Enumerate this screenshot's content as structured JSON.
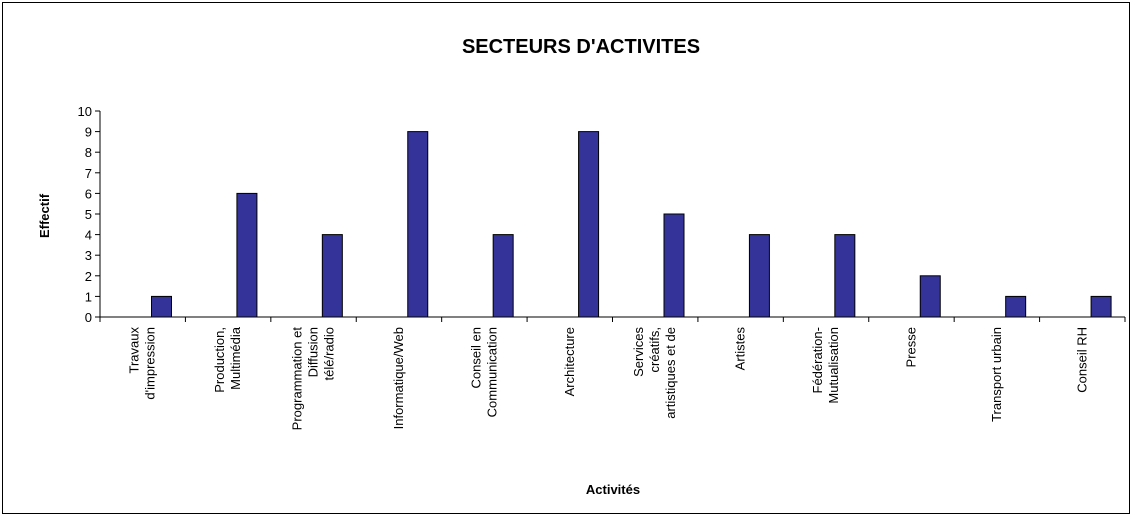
{
  "chart_data": {
    "type": "bar",
    "title": "SECTEURS D'ACTIVITES",
    "xlabel": "Activités",
    "ylabel": "Effectif",
    "ylim": [
      0,
      10
    ],
    "yticks": [
      0,
      1,
      2,
      3,
      4,
      5,
      6,
      7,
      8,
      9,
      10
    ],
    "categories": [
      [
        "Travaux",
        "d'impression"
      ],
      [
        "Production,",
        "Multimédia"
      ],
      [
        "Programmation et",
        "Diffusion",
        "télé/radio"
      ],
      [
        "Informatique/Web"
      ],
      [
        "Conseil en",
        "Communication"
      ],
      [
        "Architecture"
      ],
      [
        "Services",
        "créatifs,",
        "artistiques et de"
      ],
      [
        "Artistes"
      ],
      [
        "Fédération-",
        "Mutualisation"
      ],
      [
        "Presse"
      ],
      [
        "Transport urbain"
      ],
      [
        "Conseil RH"
      ]
    ],
    "values": [
      1,
      6,
      4,
      9,
      4,
      9,
      5,
      4,
      4,
      2,
      1,
      1
    ],
    "bar_color": "#333399",
    "grid": false,
    "legend": "none"
  }
}
